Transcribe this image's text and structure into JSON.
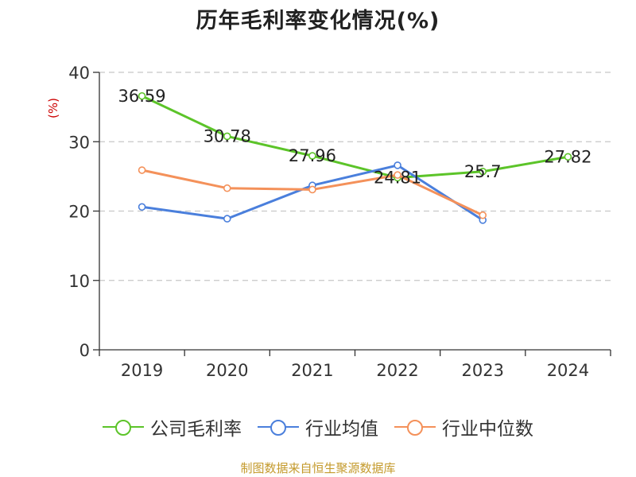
{
  "title": "历年毛利率变化情况(%)",
  "source": "制图数据来自恒生聚源数据库",
  "chart_data": {
    "type": "line",
    "categories": [
      "2019",
      "2020",
      "2021",
      "2022",
      "2023",
      "2024"
    ],
    "ylabel": "(%)",
    "ylim": [
      0,
      40
    ],
    "yticks": [
      0,
      10,
      20,
      30,
      40
    ],
    "grid": true,
    "legend_position": "bottom",
    "series": [
      {
        "name": "公司毛利率",
        "color": "#5cc429",
        "values": [
          36.59,
          30.78,
          27.96,
          24.81,
          25.7,
          27.82
        ],
        "labels": [
          "36.59",
          "30.78",
          "27.96",
          "24.81",
          "25.7",
          "27.82"
        ]
      },
      {
        "name": "行业均值",
        "color": "#4a7fdc",
        "values": [
          20.6,
          18.9,
          23.7,
          26.6,
          18.7,
          null
        ]
      },
      {
        "name": "行业中位数",
        "color": "#f4915a",
        "values": [
          25.9,
          23.3,
          23.1,
          25.2,
          19.4,
          null
        ]
      }
    ]
  }
}
